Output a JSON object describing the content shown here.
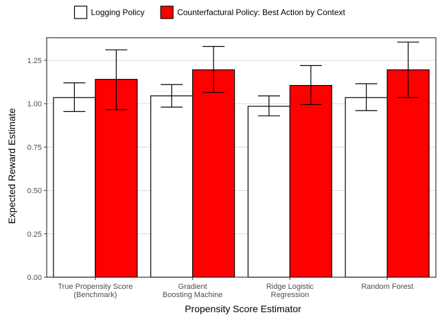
{
  "chart_data": {
    "type": "bar",
    "title": "",
    "xlabel": "Propensity Score Estimator",
    "ylabel": "Expected Reward Estimate",
    "categories": [
      [
        "True Propensity Score",
        "(Benchmark)"
      ],
      [
        "Gradient",
        "Boosting Machine"
      ],
      [
        "Ridge Logistic",
        "Regression"
      ],
      [
        "Random Forest"
      ]
    ],
    "series": [
      {
        "name": "Logging Policy",
        "color": "#ffffff",
        "values": [
          1.035,
          1.045,
          0.985,
          1.035
        ],
        "error_low": [
          0.955,
          0.98,
          0.93,
          0.96
        ],
        "error_high": [
          1.12,
          1.11,
          1.045,
          1.115
        ]
      },
      {
        "name": "Counterfactural Policy: Best Action by Context",
        "color": "#ff0000",
        "values": [
          1.14,
          1.195,
          1.105,
          1.195
        ],
        "error_low": [
          0.965,
          1.065,
          0.995,
          1.035
        ],
        "error_high": [
          1.31,
          1.33,
          1.22,
          1.355
        ]
      }
    ],
    "ylim": [
      0,
      1.38
    ],
    "yticks": [
      "0.00",
      "0.25",
      "0.50",
      "0.75",
      "1.00",
      "1.25"
    ],
    "ytick_values": [
      0,
      0.25,
      0.5,
      0.75,
      1.0,
      1.25
    ],
    "grid": true,
    "legend_position": "top"
  }
}
